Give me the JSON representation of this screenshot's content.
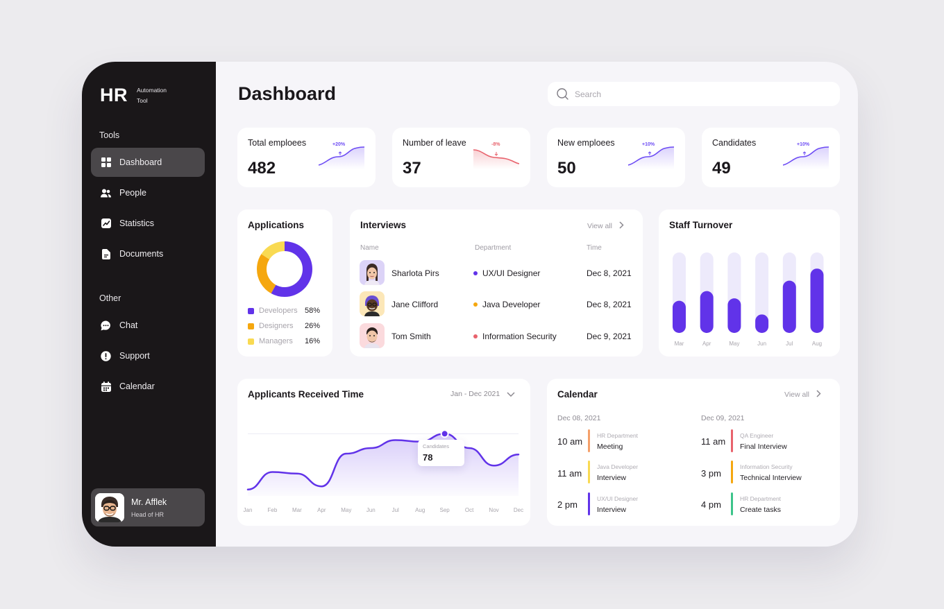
{
  "app": {
    "logo": "HR",
    "subtitle": "Automation Tool"
  },
  "sidebar": {
    "tools_label": "Tools",
    "other_label": "Other",
    "tools": [
      {
        "label": "Dashboard",
        "icon": "grid-icon",
        "active": true
      },
      {
        "label": "People",
        "icon": "people-icon"
      },
      {
        "label": "Statistics",
        "icon": "statistics-icon"
      },
      {
        "label": "Documents",
        "icon": "document-icon"
      }
    ],
    "other": [
      {
        "label": "Chat",
        "icon": "chat-icon"
      },
      {
        "label": "Support",
        "icon": "support-icon"
      },
      {
        "label": "Calendar",
        "icon": "calendar-icon"
      }
    ],
    "profile": {
      "name": "Mr. Afflek",
      "role": "Head of HR"
    }
  },
  "header": {
    "title": "Dashboard",
    "search_placeholder": "Search"
  },
  "stats": [
    {
      "label": "Total emploees",
      "value": "482",
      "change": "+20%",
      "trend": "up",
      "color": "#6C4BF4"
    },
    {
      "label": "Number of leave",
      "value": "37",
      "change": "-8%",
      "trend": "down",
      "color": "#E8626C"
    },
    {
      "label": "New emploees",
      "value": "50",
      "change": "+10%",
      "trend": "up",
      "color": "#6C4BF4"
    },
    {
      "label": "Candidates",
      "value": "49",
      "change": "+10%",
      "trend": "up",
      "color": "#6C4BF4"
    }
  ],
  "applications": {
    "title": "Applications",
    "items": [
      {
        "name": "Developers",
        "value": "58%",
        "pct": 58,
        "color": "#6133E9"
      },
      {
        "name": "Designers",
        "value": "26%",
        "pct": 26,
        "color": "#F5A70F"
      },
      {
        "name": "Managers",
        "value": "16%",
        "pct": 16,
        "color": "#F9DA52"
      }
    ]
  },
  "interviews": {
    "title": "Interviews",
    "view_all": "View all",
    "columns": {
      "name": "Name",
      "department": "Department",
      "time": "Time"
    },
    "rows": [
      {
        "name": "Sharlota Pirs",
        "department": "UX/UI Designer",
        "time": "Dec 8, 2021",
        "dot_color": "#6133E9",
        "avatar_bg": "#DCD3F7",
        "avatar_icon": "memoji-avatar-icon"
      },
      {
        "name": "Jane Clifford",
        "department": "Java Developer",
        "time": "Dec 8, 2021",
        "dot_color": "#F5A70F",
        "avatar_bg": "#FCE7B8",
        "avatar_icon": "memoji-avatar-icon"
      },
      {
        "name": "Tom Smith",
        "department": "Information Security",
        "time": "Dec 9, 2021",
        "dot_color": "#E8626C",
        "avatar_bg": "#FBDADD",
        "avatar_icon": "memoji-avatar-icon"
      }
    ]
  },
  "turnover": {
    "title": "Staff Turnover",
    "chart_data": {
      "type": "bar",
      "categories": [
        "Mar",
        "Apr",
        "May",
        "Jun",
        "Jul",
        "Aug"
      ],
      "values": [
        40,
        52,
        43,
        23,
        65,
        80
      ],
      "ylim": [
        0,
        100
      ],
      "bar_color": "#6133E9",
      "track_color": "#EDEAFB"
    }
  },
  "applicants": {
    "title": "Applicants Received Time",
    "range": "Jan - Dec 2021",
    "tooltip": {
      "label": "Candidates",
      "value": "78"
    },
    "chart_data": {
      "type": "area",
      "categories": [
        "Jan",
        "Feb",
        "Mar",
        "Apr",
        "May",
        "Jun",
        "Jul",
        "Aug",
        "Sep",
        "Oct",
        "Nov",
        "Dec"
      ],
      "values": [
        8,
        30,
        28,
        12,
        53,
        60,
        70,
        68,
        78,
        60,
        38,
        52
      ],
      "ylim": [
        0,
        100
      ],
      "highlight_index": 8,
      "line_color": "#6133E9"
    }
  },
  "calendar": {
    "title": "Calendar",
    "view_all": "View all",
    "columns": [
      {
        "date": "Dec 08, 2021",
        "events": [
          {
            "time": "10 am",
            "dept": "HR Department",
            "task": "Meeting",
            "color": "#F5A06A"
          },
          {
            "time": "11 am",
            "dept": "Java Developer",
            "task": "Interview",
            "color": "#F9DA52"
          },
          {
            "time": "2 pm",
            "dept": "UX/UI Designer",
            "task": "Interview",
            "color": "#6133E9"
          }
        ]
      },
      {
        "date": "Dec 09, 2021",
        "events": [
          {
            "time": "11 am",
            "dept": "QA Engineer",
            "task": "Final Interview",
            "color": "#E8626C"
          },
          {
            "time": "3 pm",
            "dept": "Information Security",
            "task": "Technical Interview",
            "color": "#F5A70F"
          },
          {
            "time": "4 pm",
            "dept": "HR Department",
            "task": "Create tasks",
            "color": "#3CC48A"
          }
        ]
      }
    ]
  }
}
